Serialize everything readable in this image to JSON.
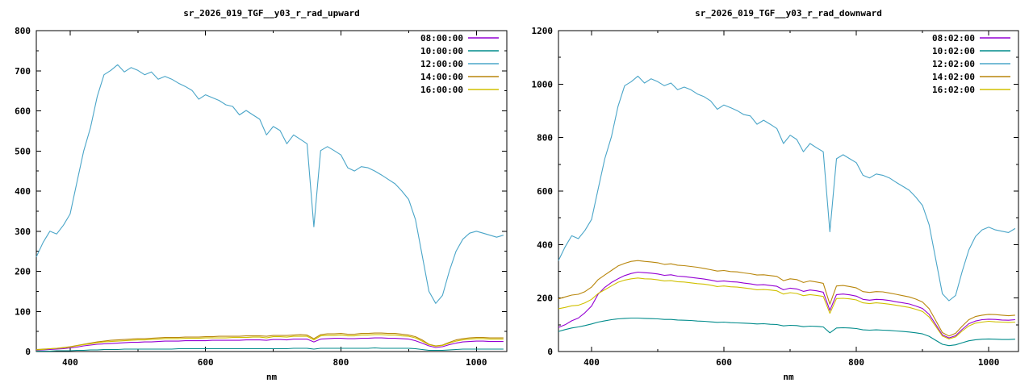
{
  "page": {
    "background": "#ffffff",
    "text_color": "#000000"
  },
  "chart_data": [
    {
      "type": "line",
      "title": "sr_2026_019_TGF__y03_r_rad_upward",
      "xlabel": "nm",
      "xlim": [
        350,
        1045
      ],
      "ylim": [
        0,
        800
      ],
      "ytick_major": 100,
      "ytick_minor": 50,
      "xticks_major": [
        400,
        600,
        800,
        1000
      ],
      "xticks_minor": [
        500,
        700,
        900
      ],
      "grid": false,
      "legend_position": "top-right",
      "x": [
        350,
        360,
        370,
        380,
        390,
        400,
        410,
        420,
        430,
        440,
        450,
        460,
        470,
        480,
        490,
        500,
        510,
        520,
        530,
        540,
        550,
        560,
        570,
        580,
        590,
        600,
        610,
        620,
        630,
        640,
        650,
        660,
        670,
        680,
        690,
        700,
        710,
        720,
        730,
        740,
        750,
        760,
        770,
        780,
        790,
        800,
        810,
        820,
        830,
        840,
        850,
        860,
        870,
        880,
        890,
        900,
        910,
        920,
        930,
        940,
        950,
        960,
        970,
        980,
        990,
        1000,
        1010,
        1020,
        1030,
        1040
      ],
      "series": [
        {
          "name": "08:00:00",
          "color": "#9400d3",
          "values": [
            3,
            4,
            5,
            6,
            7,
            9,
            11,
            14,
            16,
            18,
            19,
            20,
            21,
            22,
            23,
            23,
            24,
            24,
            25,
            26,
            26,
            26,
            27,
            27,
            27,
            27,
            28,
            28,
            28,
            28,
            28,
            29,
            29,
            29,
            28,
            30,
            30,
            29,
            31,
            31,
            31,
            24,
            31,
            32,
            33,
            33,
            32,
            32,
            33,
            33,
            34,
            34,
            33,
            33,
            32,
            31,
            27,
            21,
            14,
            10,
            12,
            17,
            21,
            24,
            25,
            26,
            26,
            25,
            25,
            25
          ]
        },
        {
          "name": "10:00:00",
          "color": "#008b8b",
          "values": [
            1,
            1,
            1,
            2,
            2,
            2,
            3,
            3,
            4,
            4,
            5,
            5,
            5,
            6,
            6,
            6,
            6,
            6,
            6,
            6,
            6,
            7,
            7,
            7,
            7,
            7,
            7,
            7,
            7,
            7,
            7,
            7,
            7,
            7,
            7,
            7,
            7,
            7,
            8,
            8,
            8,
            6,
            8,
            8,
            8,
            8,
            8,
            8,
            8,
            8,
            9,
            8,
            8,
            8,
            8,
            8,
            7,
            5,
            3,
            3,
            3,
            4,
            5,
            6,
            6,
            6,
            6,
            6,
            6,
            6
          ]
        },
        {
          "name": "12:00:00",
          "color": "#4aa5c8",
          "values": [
            236,
            272,
            300,
            293,
            315,
            343,
            422,
            500,
            558,
            636,
            690,
            701,
            715,
            697,
            708,
            701,
            690,
            697,
            679,
            686,
            679,
            669,
            661,
            651,
            629,
            640,
            633,
            626,
            615,
            611,
            590,
            601,
            590,
            579,
            540,
            561,
            551,
            518,
            540,
            529,
            518,
            311,
            501,
            511,
            501,
            490,
            458,
            450,
            461,
            458,
            450,
            440,
            429,
            418,
            400,
            379,
            329,
            240,
            150,
            120,
            140,
            200,
            250,
            280,
            295,
            300,
            295,
            290,
            285,
            290
          ]
        },
        {
          "name": "14:00:00",
          "color": "#b8860b",
          "values": [
            5,
            6,
            7,
            8,
            10,
            12,
            15,
            18,
            21,
            24,
            26,
            28,
            29,
            30,
            31,
            32,
            32,
            33,
            34,
            35,
            35,
            35,
            36,
            36,
            36,
            37,
            37,
            38,
            38,
            38,
            38,
            39,
            39,
            39,
            38,
            40,
            40,
            40,
            41,
            42,
            41,
            32,
            42,
            44,
            44,
            45,
            43,
            43,
            45,
            45,
            46,
            46,
            45,
            45,
            43,
            41,
            37,
            29,
            18,
            14,
            16,
            23,
            29,
            32,
            34,
            35,
            35,
            34,
            34,
            34
          ]
        },
        {
          "name": "16:00:00",
          "color": "#d0c000",
          "values": [
            4,
            5,
            7,
            8,
            9,
            11,
            14,
            17,
            19,
            22,
            24,
            25,
            26,
            27,
            28,
            29,
            29,
            30,
            31,
            32,
            32,
            32,
            33,
            33,
            33,
            34,
            34,
            34,
            34,
            35,
            35,
            35,
            36,
            36,
            34,
            37,
            37,
            36,
            38,
            38,
            38,
            29,
            39,
            40,
            40,
            41,
            39,
            39,
            41,
            41,
            42,
            42,
            41,
            41,
            39,
            38,
            34,
            26,
            17,
            13,
            15,
            21,
            26,
            29,
            31,
            32,
            32,
            31,
            31,
            31
          ]
        }
      ]
    },
    {
      "type": "line",
      "title": "sr_2026_019_TGF__y03_r_rad_downward",
      "xlabel": "nm",
      "xlim": [
        350,
        1045
      ],
      "ylim": [
        0,
        1200
      ],
      "ytick_major": 200,
      "ytick_minor": 100,
      "xticks_major": [
        400,
        600,
        800,
        1000
      ],
      "xticks_minor": [
        500,
        700,
        900
      ],
      "grid": false,
      "legend_position": "top-right",
      "x": [
        350,
        360,
        370,
        380,
        390,
        400,
        410,
        420,
        430,
        440,
        450,
        460,
        470,
        480,
        490,
        500,
        510,
        520,
        530,
        540,
        550,
        560,
        570,
        580,
        590,
        600,
        610,
        620,
        630,
        640,
        650,
        660,
        670,
        680,
        690,
        700,
        710,
        720,
        730,
        740,
        750,
        760,
        770,
        780,
        790,
        800,
        810,
        820,
        830,
        840,
        850,
        860,
        870,
        880,
        890,
        900,
        910,
        920,
        930,
        940,
        950,
        960,
        970,
        980,
        990,
        1000,
        1010,
        1020,
        1030,
        1040
      ],
      "series": [
        {
          "name": "08:02:00",
          "color": "#9400d3",
          "values": [
            90,
            100,
            115,
            125,
            145,
            170,
            215,
            240,
            258,
            272,
            284,
            292,
            297,
            295,
            293,
            290,
            285,
            287,
            282,
            280,
            277,
            274,
            271,
            267,
            262,
            264,
            261,
            260,
            256,
            253,
            249,
            250,
            247,
            244,
            231,
            237,
            234,
            225,
            230,
            227,
            222,
            154,
            213,
            215,
            212,
            207,
            195,
            192,
            195,
            194,
            191,
            186,
            182,
            178,
            170,
            161,
            139,
            101,
            62,
            51,
            59,
            83,
            104,
            114,
            119,
            121,
            120,
            118,
            117,
            119
          ]
        },
        {
          "name": "10:02:00",
          "color": "#008b8b",
          "values": [
            75,
            82,
            88,
            92,
            97,
            103,
            110,
            115,
            119,
            122,
            124,
            125,
            125,
            124,
            123,
            122,
            120,
            120,
            118,
            117,
            116,
            114,
            113,
            111,
            109,
            110,
            108,
            107,
            106,
            105,
            103,
            104,
            102,
            101,
            96,
            98,
            97,
            93,
            95,
            94,
            92,
            70,
            88,
            89,
            88,
            86,
            81,
            80,
            81,
            80,
            79,
            77,
            75,
            73,
            70,
            66,
            57,
            42,
            27,
            22,
            25,
            33,
            40,
            44,
            46,
            47,
            46,
            45,
            45,
            46
          ]
        },
        {
          "name": "12:02:00",
          "color": "#4aa5c8",
          "values": [
            340,
            391,
            433,
            422,
            453,
            494,
            608,
            721,
            803,
            917,
            994,
            1009,
            1030,
            1004,
            1020,
            1009,
            994,
            1004,
            979,
            989,
            979,
            963,
            953,
            937,
            906,
            922,
            912,
            901,
            886,
            881,
            850,
            865,
            850,
            834,
            778,
            809,
            793,
            747,
            778,
            762,
            747,
            448,
            721,
            736,
            721,
            706,
            659,
            649,
            664,
            659,
            649,
            633,
            618,
            603,
            577,
            546,
            474,
            345,
            216,
            190,
            210,
            300,
            380,
            430,
            455,
            465,
            455,
            450,
            445,
            460
          ]
        },
        {
          "name": "14:02:00",
          "color": "#b8860b",
          "values": [
            197,
            204,
            211,
            214,
            224,
            241,
            269,
            286,
            303,
            320,
            330,
            337,
            340,
            337,
            335,
            332,
            326,
            328,
            323,
            321,
            318,
            315,
            311,
            306,
            301,
            303,
            299,
            298,
            294,
            291,
            286,
            287,
            284,
            281,
            265,
            272,
            269,
            258,
            264,
            260,
            255,
            177,
            245,
            247,
            243,
            238,
            224,
            221,
            224,
            223,
            219,
            214,
            209,
            204,
            196,
            185,
            160,
            116,
            71,
            58,
            68,
            95,
            119,
            131,
            136,
            139,
            138,
            136,
            134,
            136
          ]
        },
        {
          "name": "16:02:00",
          "color": "#d0c000",
          "values": [
            160,
            165,
            171,
            173,
            182,
            195,
            217,
            231,
            245,
            259,
            267,
            272,
            275,
            272,
            271,
            268,
            264,
            265,
            261,
            260,
            257,
            254,
            252,
            248,
            243,
            245,
            242,
            241,
            238,
            235,
            231,
            232,
            230,
            227,
            215,
            220,
            217,
            209,
            213,
            210,
            206,
            143,
            198,
            199,
            197,
            193,
            182,
            179,
            182,
            180,
            177,
            173,
            169,
            165,
            158,
            150,
            129,
            94,
            58,
            47,
            55,
            77,
            96,
            106,
            110,
            113,
            111,
            110,
            109,
            110
          ]
        }
      ]
    }
  ]
}
